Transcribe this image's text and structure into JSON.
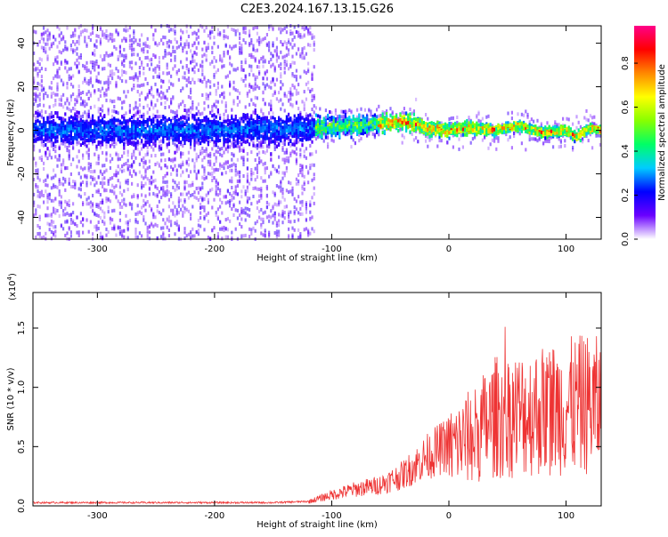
{
  "page_title": "C2E3.2024.167.13.15.G26",
  "chart_data": [
    {
      "type": "heatmap",
      "title": "C2E3.2024.167.13.15.G26",
      "xlabel": "Height of straight line (km)",
      "ylabel": "Frequency (Hz)",
      "xlim": [
        -355,
        130
      ],
      "ylim": [
        -50,
        48
      ],
      "x_ticks": [
        -300,
        -200,
        -100,
        0,
        100
      ],
      "y_ticks": [
        -40,
        -20,
        0,
        20,
        40
      ],
      "colorbar": {
        "label": "Normalized spectral amplitude",
        "range": [
          0,
          0.97
        ],
        "ticks": [
          0.0,
          0.2,
          0.4,
          0.6,
          0.8
        ],
        "colormap": [
          "#ffffff",
          "#6a00ff",
          "#0000ff",
          "#00ccff",
          "#00ff66",
          "#88ff00",
          "#ffff00",
          "#ff8800",
          "#ff0000",
          "#ff0088"
        ]
      },
      "ridge": {
        "x": [
          -355,
          -300,
          -200,
          -120,
          -100,
          -80,
          -60,
          -40,
          -30,
          -20,
          0,
          20,
          40,
          60,
          80,
          100,
          110,
          120,
          130
        ],
        "freq": [
          0,
          0,
          0,
          1,
          2,
          2,
          3,
          4,
          3,
          1,
          0,
          1,
          0,
          2,
          -1,
          0,
          -3,
          1,
          0
        ]
      },
      "grid": false
    },
    {
      "type": "line",
      "xlabel": "Height of straight line (km)",
      "ylabel": "SNR (10 * v/v)",
      "y_multiplier": "(x10",
      "y_multiplier_exp": "4",
      "y_multiplier_close": ")",
      "xlim": [
        -355,
        130
      ],
      "ylim": [
        0,
        1.8
      ],
      "x_ticks": [
        -300,
        -200,
        -100,
        0,
        100
      ],
      "y_ticks": [
        0.0,
        0.5,
        1.0,
        1.5
      ],
      "color": "#ee3333",
      "series": [
        {
          "x": [
            -355,
            -300,
            -250,
            -200,
            -150,
            -120,
            -100,
            -80,
            -60,
            -40,
            -20,
            0,
            20,
            40,
            60,
            80,
            100,
            120,
            130
          ],
          "values": [
            0.02,
            0.02,
            0.02,
            0.02,
            0.02,
            0.03,
            0.08,
            0.12,
            0.15,
            0.22,
            0.35,
            0.45,
            0.55,
            0.7,
            0.72,
            0.75,
            0.78,
            0.8,
            0.78
          ]
        }
      ],
      "grid": false
    }
  ]
}
